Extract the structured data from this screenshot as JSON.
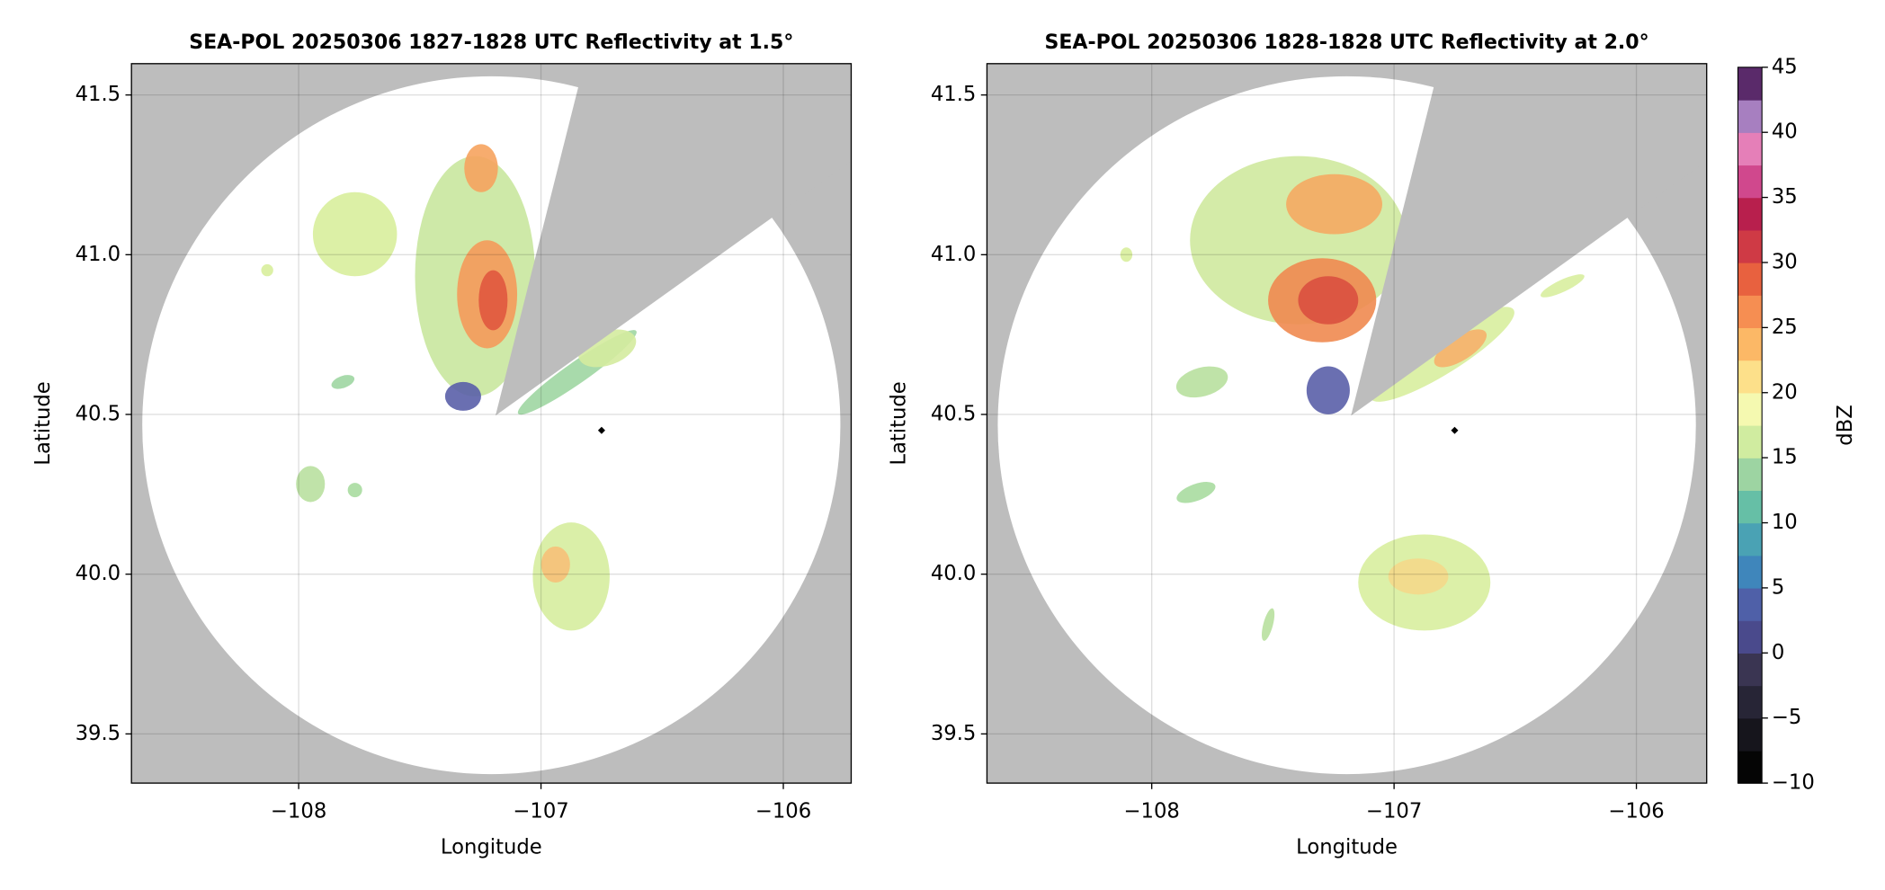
{
  "chart_data": [
    {
      "type": "map",
      "title": "SEA-POL 20250306 1827-1828 UTC Reflectivity at 1.5°",
      "xlabel": "Longitude",
      "ylabel": "Latitude",
      "xlim": [
        -108.69,
        -105.72
      ],
      "ylim": [
        39.346,
        41.598
      ],
      "xticks": [
        {
          "value": -108,
          "label": "−108"
        },
        {
          "value": -107,
          "label": "−107"
        },
        {
          "value": -106,
          "label": "−106"
        }
      ],
      "yticks": [
        39.5,
        {
          "value": 40,
          "label": "40.0"
        },
        40.5,
        {
          "value": 41,
          "label": "41.0"
        },
        41.5
      ],
      "grid": true,
      "points": {
        "x": [
          -106.75
        ],
        "y": [
          40.45
        ],
        "color": "#000000"
      }
    },
    {
      "type": "map",
      "title": "SEA-POL 20250306 1828-1828 UTC Reflectivity at 2.0°",
      "xlabel": "Longitude",
      "ylabel": "Latitude",
      "xlim": [
        -108.68,
        -105.71
      ],
      "ylim": [
        39.346,
        41.598
      ],
      "xticks": [
        {
          "value": -108,
          "label": "−108"
        },
        {
          "value": -107,
          "label": "−107"
        },
        {
          "value": -106,
          "label": "−106"
        }
      ],
      "yticks": [
        39.5,
        {
          "value": 40,
          "label": "40.0"
        },
        40.5,
        {
          "value": 41,
          "label": "41.0"
        },
        41.5
      ],
      "grid": true,
      "points": {
        "x": [
          -106.75
        ],
        "y": [
          40.45
        ],
        "color": "#000000"
      }
    }
  ],
  "colorbar": {
    "label": "dBZ",
    "lim": [
      -10,
      45
    ],
    "ticks": [
      {
        "value": -10,
        "label": "−10"
      },
      {
        "value": -5,
        "label": "−5"
      },
      0,
      5,
      10,
      15,
      20,
      25,
      30,
      35,
      40,
      45
    ],
    "colors": [
      "#050505",
      "#16151c",
      "#272536",
      "#3a3552",
      "#4a4a8c",
      "#4f60a8",
      "#3f86bb",
      "#4aa2b4",
      "#66bfa6",
      "#9dd4a2",
      "#d0eca0",
      "#f5f9b0",
      "#fde08a",
      "#fcb866",
      "#f68e52",
      "#e8613f",
      "#cf3a45",
      "#b81f4d",
      "#d0488d",
      "#e57fb8",
      "#a77fc0",
      "#5a2a6a"
    ]
  }
}
